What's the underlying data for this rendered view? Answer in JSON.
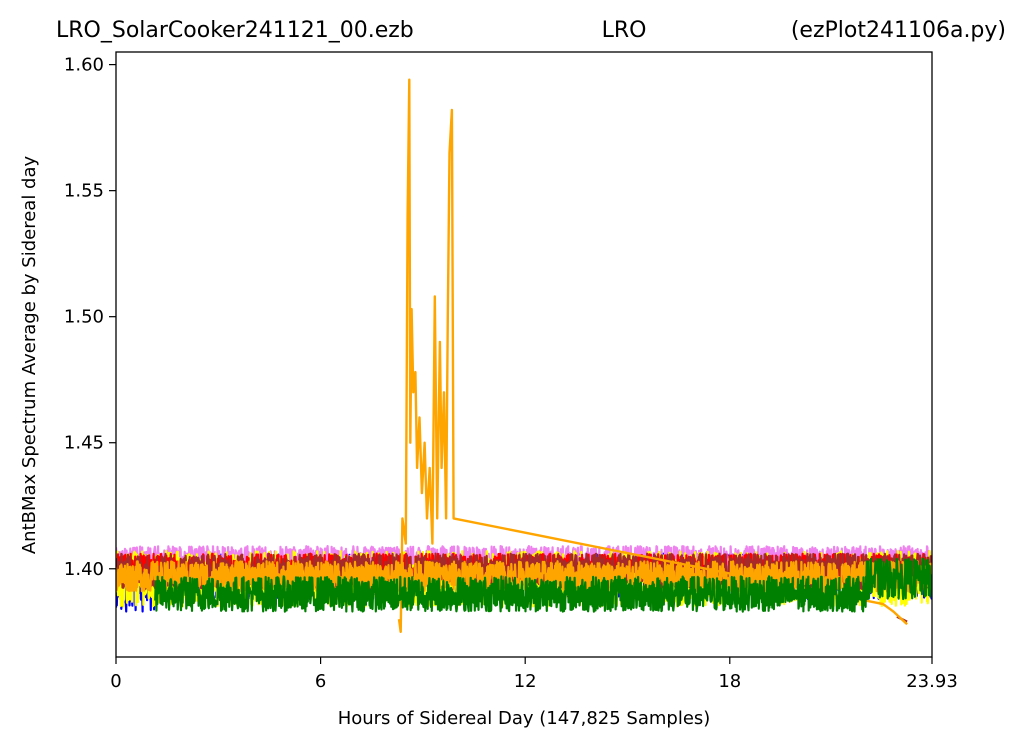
{
  "title": {
    "left": "LRO_SolarCooker241121_00.ezb",
    "center": "LRO",
    "right": "(ezPlot241106a.py)"
  },
  "chart_data": {
    "type": "line",
    "xlabel": "Hours of Sidereal Day  (147,825 Samples)",
    "ylabel": "AntBMax Spectrum Average by Sidereal day",
    "xlim": [
      0,
      23.93
    ],
    "ylim": [
      1.365,
      1.605
    ],
    "x_ticks": [
      0,
      6,
      12,
      18,
      23.93
    ],
    "x_tick_labels": [
      "0",
      "6",
      "12",
      "18",
      "23.93"
    ],
    "y_ticks": [
      1.4,
      1.45,
      1.5,
      1.55,
      1.6
    ],
    "y_tick_labels": [
      "1.40",
      "1.45",
      "1.50",
      "1.55",
      "1.60"
    ],
    "grid": false,
    "legend": "none",
    "series": [
      {
        "color": "#0000ff",
        "base": 1.397,
        "noise": 0.009,
        "range": [
          0,
          23.93
        ],
        "segments": [
          {
            "x": [
              0,
              1.15
            ],
            "base": 1.394,
            "noise": 0.011
          }
        ]
      },
      {
        "color": "#ee82ee",
        "base": 1.404,
        "noise": 0.005,
        "range": [
          0,
          23.93
        ]
      },
      {
        "color": "#ffff00",
        "base": 1.396,
        "noise": 0.011,
        "range": [
          0,
          23.93
        ]
      },
      {
        "color": "#ff0000",
        "base": 1.4,
        "noise": 0.006,
        "range": [
          0,
          23.93
        ]
      },
      {
        "color": "#a52a2a",
        "base": 1.399,
        "noise": 0.007,
        "range": [
          0,
          23.93
        ],
        "points": [
          [
            22.9,
            1.381
          ],
          [
            23.2,
            1.379
          ]
        ]
      },
      {
        "color": "#ffa500",
        "base": 1.397,
        "noise": 0.006,
        "range": [
          0,
          23.93
        ],
        "points": [
          [
            8.3,
            1.38
          ],
          [
            8.35,
            1.375
          ],
          [
            8.4,
            1.42
          ],
          [
            8.5,
            1.41
          ],
          [
            8.55,
            1.54
          ],
          [
            8.6,
            1.594
          ],
          [
            8.63,
            1.45
          ],
          [
            8.67,
            1.503
          ],
          [
            8.72,
            1.47
          ],
          [
            8.78,
            1.478
          ],
          [
            8.83,
            1.44
          ],
          [
            8.9,
            1.46
          ],
          [
            8.97,
            1.43
          ],
          [
            9.05,
            1.45
          ],
          [
            9.12,
            1.42
          ],
          [
            9.2,
            1.44
          ],
          [
            9.28,
            1.41
          ],
          [
            9.35,
            1.508
          ],
          [
            9.42,
            1.42
          ],
          [
            9.5,
            1.49
          ],
          [
            9.55,
            1.44
          ],
          [
            9.62,
            1.47
          ],
          [
            9.68,
            1.42
          ],
          [
            9.73,
            1.5
          ],
          [
            9.78,
            1.565
          ],
          [
            9.85,
            1.582
          ],
          [
            9.9,
            1.42
          ],
          [
            22.5,
            1.386
          ],
          [
            22.8,
            1.383
          ],
          [
            23.2,
            1.378
          ]
        ]
      },
      {
        "color": "#008000",
        "base": 1.39,
        "noise": 0.007,
        "range": [
          1.15,
          23.93
        ],
        "segments": [
          {
            "x": [
              22.0,
              23.93
            ],
            "base": 1.396,
            "noise": 0.008
          }
        ]
      }
    ]
  }
}
